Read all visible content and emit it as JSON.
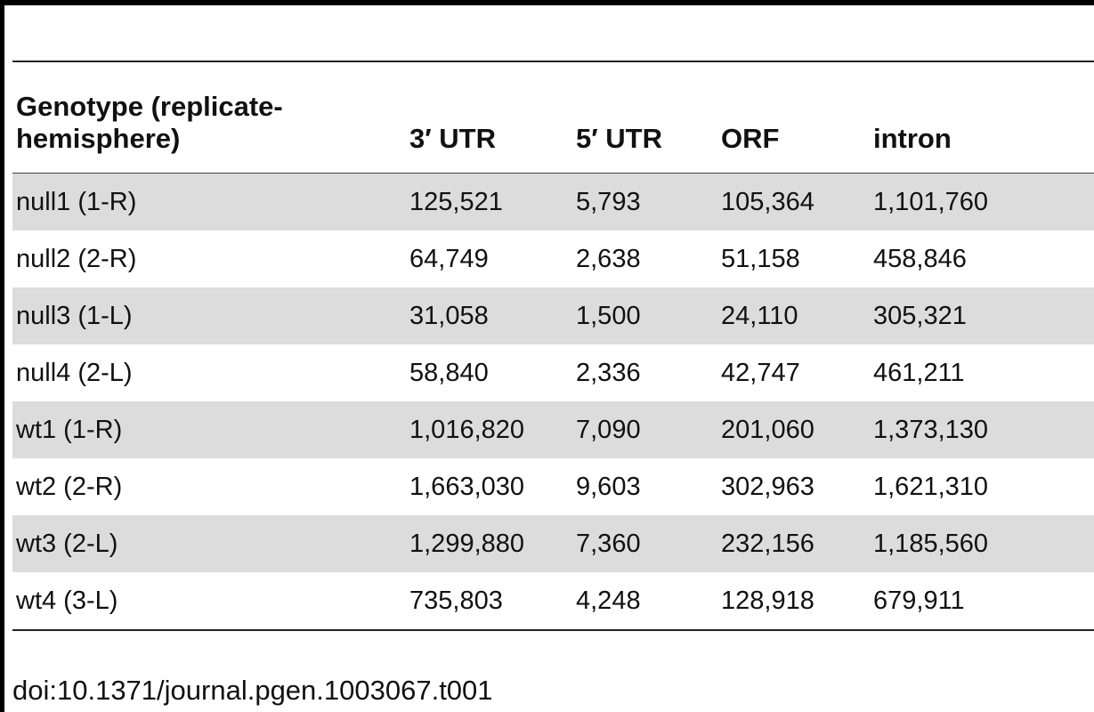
{
  "table": {
    "headers": {
      "genotype": "Genotype (replicate-hemisphere)",
      "utr3": "3′ UTR",
      "utr5": "5′ UTR",
      "orf": "ORF",
      "intron": "intron"
    },
    "rows": [
      {
        "genotype": "null1 (1-R)",
        "utr3": "125,521",
        "utr5": "5,793",
        "orf": "105,364",
        "intron": "1,101,760"
      },
      {
        "genotype": "null2 (2-R)",
        "utr3": "64,749",
        "utr5": "2,638",
        "orf": "51,158",
        "intron": "458,846"
      },
      {
        "genotype": "null3 (1-L)",
        "utr3": "31,058",
        "utr5": "1,500",
        "orf": "24,110",
        "intron": "305,321"
      },
      {
        "genotype": "null4 (2-L)",
        "utr3": "58,840",
        "utr5": "2,336",
        "orf": "42,747",
        "intron": "461,211"
      },
      {
        "genotype": "wt1 (1-R)",
        "utr3": "1,016,820",
        "utr5": "7,090",
        "orf": "201,060",
        "intron": "1,373,130"
      },
      {
        "genotype": "wt2 (2-R)",
        "utr3": "1,663,030",
        "utr5": "9,603",
        "orf": "302,963",
        "intron": "1,621,310"
      },
      {
        "genotype": "wt3 (2-L)",
        "utr3": "1,299,880",
        "utr5": "7,360",
        "orf": "232,156",
        "intron": "1,185,560"
      },
      {
        "genotype": "wt4 (3-L)",
        "utr3": "735,803",
        "utr5": "4,248",
        "orf": "128,918",
        "intron": "679,911"
      }
    ],
    "row_shading": [
      "shaded",
      "plain",
      "shaded",
      "plain",
      "shaded",
      "plain",
      "shaded",
      "plain"
    ],
    "stripe_color": "#dcdcdc"
  },
  "footnote": "doi:10.1371/journal.pgen.1003067.t001"
}
